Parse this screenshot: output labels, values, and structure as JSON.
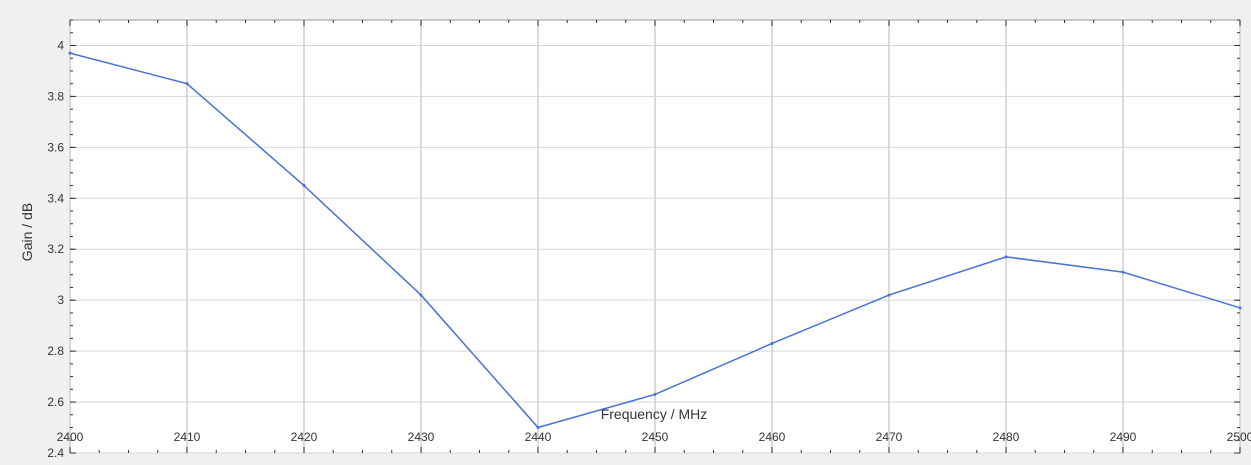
{
  "chart_data": {
    "type": "line",
    "xlabel": "Frequency / MHz",
    "ylabel": "Gain / dB",
    "xlim": [
      2400,
      2500
    ],
    "ylim": [
      2.4,
      4.1
    ],
    "grid": true,
    "x_ticks": [
      "2400",
      "2410",
      "2420",
      "2430",
      "2440",
      "2450",
      "2460",
      "2470",
      "2480",
      "2490",
      "2500"
    ],
    "y_ticks": [
      "2.4",
      "2.6",
      "2.8",
      "3",
      "3.2",
      "3.4",
      "3.6",
      "3.8",
      "4"
    ],
    "series": [
      {
        "x": [
          2400,
          2410,
          2420,
          2430,
          2440,
          2450,
          2460,
          2470,
          2480,
          2490,
          2500
        ],
        "values": [
          3.97,
          3.85,
          3.45,
          3.02,
          2.5,
          2.63,
          2.83,
          3.02,
          3.17,
          3.11,
          2.97
        ],
        "color": "#4a72d6"
      }
    ]
  }
}
